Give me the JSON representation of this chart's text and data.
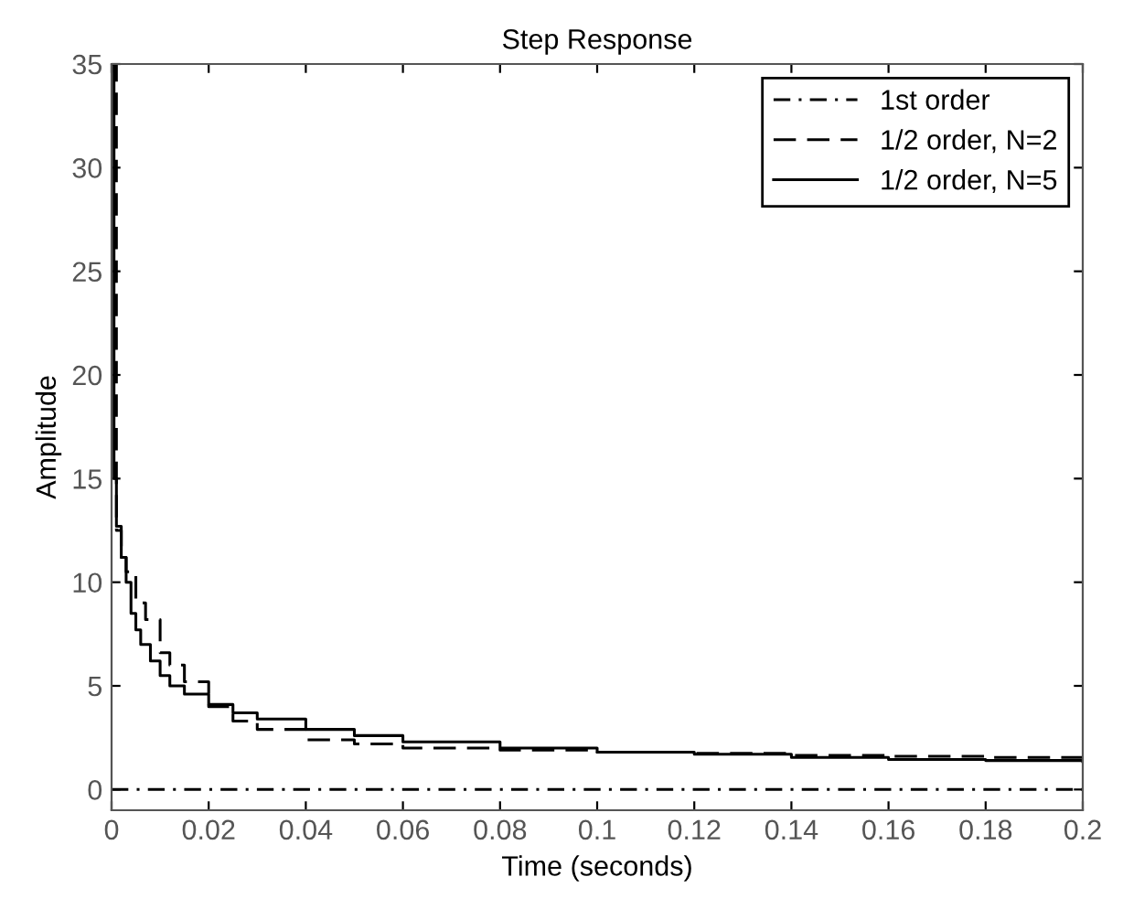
{
  "chart_data": {
    "type": "step",
    "title": "Step Response",
    "xlabel": "Time (seconds)",
    "ylabel": "Amplitude",
    "xlim": [
      0,
      0.2
    ],
    "xticks": [
      0,
      0.02,
      0.04,
      0.06,
      0.08,
      0.1,
      0.12,
      0.14,
      0.16,
      0.18,
      0.2
    ],
    "ylim": [
      -1,
      35
    ],
    "yticks": [
      0,
      5,
      10,
      15,
      20,
      25,
      30,
      35
    ],
    "grid": false,
    "legend": "top right",
    "marker": "none",
    "series": [
      {
        "name": "1st order",
        "color": "#000000",
        "line_style": "dashdot",
        "x": [
          0,
          0.2
        ],
        "values": [
          0,
          0
        ]
      },
      {
        "name": "1/2 order, N=2",
        "color": "#000000",
        "line_style": "dashed",
        "x": [
          0,
          0.001,
          0.002,
          0.003,
          0.005,
          0.007,
          0.01,
          0.012,
          0.015,
          0.02,
          0.025,
          0.03,
          0.04,
          0.05,
          0.06,
          0.08,
          0.1,
          0.12,
          0.14,
          0.16,
          0.18,
          0.2
        ],
        "values": [
          35,
          12.5,
          11.2,
          10.5,
          9.0,
          8.2,
          6.6,
          6.0,
          5.2,
          4.0,
          3.3,
          2.9,
          2.4,
          2.2,
          2.0,
          1.9,
          1.8,
          1.75,
          1.65,
          1.6,
          1.55,
          1.5
        ]
      },
      {
        "name": "1/2 order, N=5",
        "color": "#000000",
        "line_style": "solid",
        "x": [
          0,
          0.0005,
          0.001,
          0.002,
          0.003,
          0.004,
          0.005,
          0.006,
          0.008,
          0.01,
          0.012,
          0.015,
          0.02,
          0.025,
          0.03,
          0.04,
          0.05,
          0.06,
          0.08,
          0.1,
          0.12,
          0.14,
          0.16,
          0.18,
          0.2
        ],
        "values": [
          35,
          15,
          12.7,
          11.2,
          10,
          8.5,
          7.7,
          7,
          6.2,
          5.5,
          5.0,
          4.6,
          4.1,
          3.7,
          3.4,
          2.9,
          2.6,
          2.3,
          2.0,
          1.8,
          1.7,
          1.55,
          1.45,
          1.4,
          1.35
        ]
      }
    ]
  }
}
